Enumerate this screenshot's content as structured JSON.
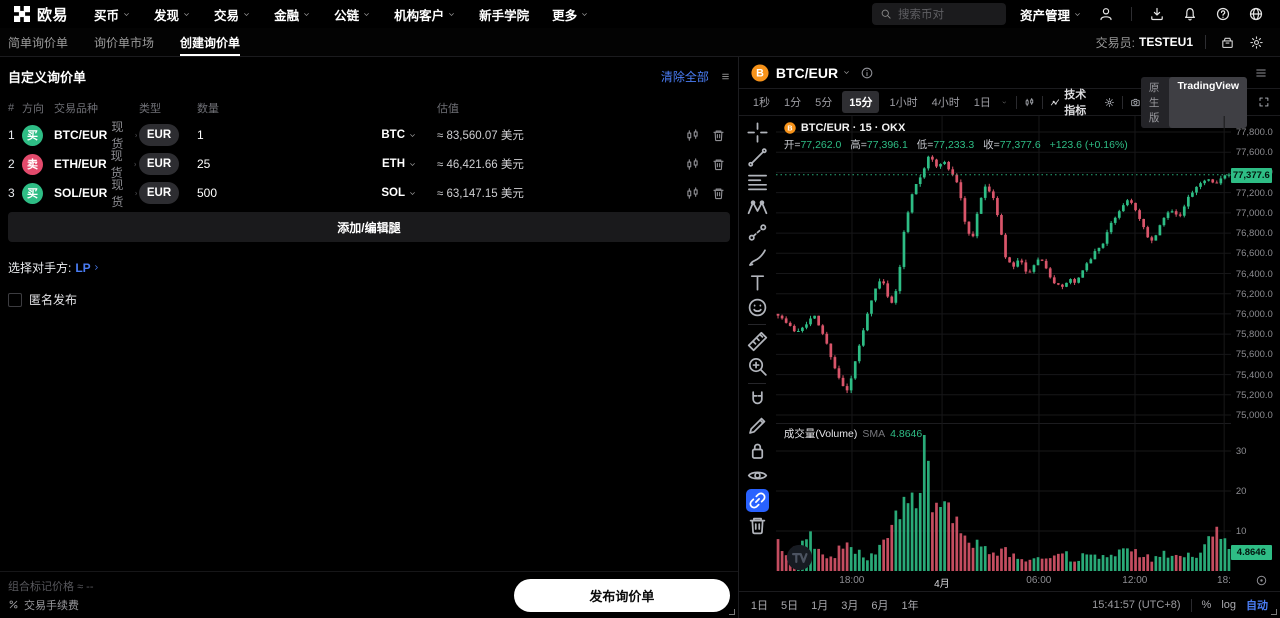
{
  "topnav": {
    "logo_text": "欧易",
    "items": [
      {
        "label": "买币",
        "chevron": true
      },
      {
        "label": "发现",
        "chevron": true
      },
      {
        "label": "交易",
        "chevron": true
      },
      {
        "label": "金融",
        "chevron": true
      },
      {
        "label": "公链",
        "chevron": true
      },
      {
        "label": "机构客户",
        "chevron": true
      },
      {
        "label": "新手学院",
        "chevron": false
      },
      {
        "label": "更多",
        "chevron": true
      }
    ],
    "search_placeholder": "搜索币对",
    "asset_label": "资产管理"
  },
  "subnav": {
    "tabs": [
      {
        "label": "简单询价单",
        "active": false
      },
      {
        "label": "询价单市场",
        "active": false
      },
      {
        "label": "创建询价单",
        "active": true
      }
    ],
    "trader_label": "交易员:",
    "trader_name": "TESTEU1"
  },
  "rfq": {
    "title": "自定义询价单",
    "clear_all_label": "清除全部",
    "headers": {
      "index": "#",
      "side": "方向",
      "instrument": "交易品种",
      "type": "类型",
      "amount": "数量",
      "valuation": "估值"
    },
    "rows": [
      {
        "index": "1",
        "side": "买",
        "direction": "buy",
        "pair": "BTC/EUR",
        "market": "现货",
        "type": "EUR",
        "amount": "1",
        "currency": "BTC",
        "valuation": "≈ 83,560.07 美元"
      },
      {
        "index": "2",
        "side": "卖",
        "direction": "sell",
        "pair": "ETH/EUR",
        "market": "现货",
        "type": "EUR",
        "amount": "25",
        "currency": "ETH",
        "valuation": "≈ 46,421.66 美元"
      },
      {
        "index": "3",
        "side": "买",
        "direction": "buy",
        "pair": "SOL/EUR",
        "market": "现货",
        "type": "EUR",
        "amount": "500",
        "currency": "SOL",
        "valuation": "≈ 63,147.15 美元"
      }
    ],
    "add_leg_label": "添加/编辑腿",
    "counterparty_label": "选择对手方:",
    "counterparty_value": "LP",
    "anonymous_label": "匿名发布",
    "mark_price_label": "组合标记价格",
    "mark_price_value": "≈ --",
    "fee_label": "交易手续费",
    "publish_label": "发布询价单"
  },
  "chart": {
    "symbol": "BTC/EUR",
    "timeframes": [
      "1秒",
      "1分",
      "5分",
      "15分",
      "1小时",
      "4小时",
      "1日"
    ],
    "active_timeframe": "15分",
    "indicators_label": "技术指标",
    "version_native": "原生版",
    "version_tv": "TradingView",
    "legend_title": "BTC/EUR · 15 · OKX",
    "ohlc": {
      "open_label": "开=",
      "open": "77,262.0",
      "high_label": "高=",
      "high": "77,396.1",
      "low_label": "低=",
      "low": "77,233.3",
      "close_label": "收=",
      "close": "77,377.6",
      "change": "+123.6 (+0.16%)"
    },
    "volume_label": "成交量(Volume)",
    "sma_label": "SMA",
    "sma_value": "4.8646",
    "last_price_label": "77,377.6",
    "time_ticks": [
      {
        "label": "18:00",
        "t": 0.167,
        "major": false
      },
      {
        "label": "4月",
        "t": 0.365,
        "major": true
      },
      {
        "label": "06:00",
        "t": 0.578,
        "major": false
      },
      {
        "label": "12:00",
        "t": 0.789,
        "major": false
      },
      {
        "label": "18:",
        "t": 0.985,
        "major": false
      }
    ],
    "ranges": [
      "1日",
      "5日",
      "1月",
      "3月",
      "6月",
      "1年"
    ],
    "clock": "15:41:57 (UTC+8)",
    "percent_label": "%",
    "log_label": "log",
    "auto_label": "自动",
    "tools": [
      "crosshair",
      "trend-line",
      "fib-retracement",
      "xabcd-pattern",
      "forecast",
      "brush",
      "text-tool",
      "emoji",
      "divider",
      "ruler",
      "zoom-in",
      "divider",
      "magnet",
      "draw-lock",
      "lock-all",
      "hide-all",
      "link-tool",
      "delete-drawings"
    ],
    "colors": {
      "up": "#2ebd85",
      "down": "#d9556a",
      "accent_blue": "#4a7df5",
      "tool_selected_blue": "#2962ff",
      "btc_orange": "#f7931a",
      "grid": "#171719"
    }
  },
  "chart_data": {
    "type": "candlestick",
    "symbol": "BTC/EUR",
    "interval": "15m",
    "exchange": "OKX",
    "current": {
      "open": 77262.0,
      "high": 77396.1,
      "low": 77233.3,
      "close": 77377.6,
      "change": 123.6,
      "change_pct": 0.16
    },
    "price_axis": {
      "min": 75000,
      "max": 77800,
      "step": 200
    },
    "volume_axis": {
      "ticks": [
        10,
        20,
        30
      ],
      "sma": 4.8646
    },
    "num_candles": 112,
    "price_keypoints": [
      [
        0,
        76000
      ],
      [
        0.02,
        75900
      ],
      [
        0.04,
        75820
      ],
      [
        0.06,
        75900
      ],
      [
        0.08,
        75980
      ],
      [
        0.1,
        75800
      ],
      [
        0.12,
        75550
      ],
      [
        0.14,
        75300
      ],
      [
        0.155,
        75230
      ],
      [
        0.17,
        75500
      ],
      [
        0.19,
        75850
      ],
      [
        0.21,
        76200
      ],
      [
        0.23,
        76350
      ],
      [
        0.25,
        76100
      ],
      [
        0.265,
        76250
      ],
      [
        0.28,
        76850
      ],
      [
        0.3,
        77250
      ],
      [
        0.32,
        77400
      ],
      [
        0.335,
        77580
      ],
      [
        0.35,
        77450
      ],
      [
        0.365,
        77520
      ],
      [
        0.385,
        77400
      ],
      [
        0.4,
        77280
      ],
      [
        0.415,
        76900
      ],
      [
        0.43,
        76700
      ],
      [
        0.445,
        77100
      ],
      [
        0.46,
        77250
      ],
      [
        0.475,
        77200
      ],
      [
        0.49,
        76900
      ],
      [
        0.505,
        76550
      ],
      [
        0.52,
        76450
      ],
      [
        0.535,
        76550
      ],
      [
        0.55,
        76400
      ],
      [
        0.565,
        76450
      ],
      [
        0.58,
        76550
      ],
      [
        0.6,
        76400
      ],
      [
        0.615,
        76300
      ],
      [
        0.63,
        76250
      ],
      [
        0.645,
        76350
      ],
      [
        0.66,
        76300
      ],
      [
        0.68,
        76450
      ],
      [
        0.7,
        76600
      ],
      [
        0.72,
        76700
      ],
      [
        0.74,
        76900
      ],
      [
        0.76,
        77050
      ],
      [
        0.78,
        77150
      ],
      [
        0.8,
        76950
      ],
      [
        0.815,
        76800
      ],
      [
        0.83,
        76700
      ],
      [
        0.85,
        76900
      ],
      [
        0.87,
        77050
      ],
      [
        0.89,
        76950
      ],
      [
        0.91,
        77150
      ],
      [
        0.93,
        77250
      ],
      [
        0.95,
        77350
      ],
      [
        0.97,
        77300
      ],
      [
        0.985,
        77350
      ],
      [
        1,
        77377.6
      ]
    ],
    "volume_keypoints": [
      [
        0,
        7
      ],
      [
        0.03,
        4
      ],
      [
        0.07,
        8
      ],
      [
        0.1,
        3
      ],
      [
        0.13,
        5
      ],
      [
        0.16,
        6
      ],
      [
        0.19,
        3
      ],
      [
        0.22,
        4
      ],
      [
        0.25,
        9
      ],
      [
        0.27,
        13
      ],
      [
        0.29,
        17
      ],
      [
        0.31,
        25
      ],
      [
        0.325,
        34
      ],
      [
        0.34,
        16
      ],
      [
        0.36,
        13
      ],
      [
        0.38,
        14
      ],
      [
        0.4,
        10
      ],
      [
        0.42,
        8
      ],
      [
        0.44,
        6
      ],
      [
        0.47,
        4
      ],
      [
        0.5,
        5
      ],
      [
        0.53,
        3
      ],
      [
        0.56,
        4
      ],
      [
        0.6,
        3
      ],
      [
        0.63,
        4
      ],
      [
        0.66,
        3
      ],
      [
        0.7,
        4
      ],
      [
        0.73,
        3
      ],
      [
        0.76,
        5
      ],
      [
        0.8,
        4
      ],
      [
        0.83,
        3
      ],
      [
        0.86,
        4
      ],
      [
        0.9,
        3
      ],
      [
        0.93,
        5
      ],
      [
        0.96,
        7
      ],
      [
        0.98,
        9
      ],
      [
        1,
        6
      ]
    ]
  }
}
